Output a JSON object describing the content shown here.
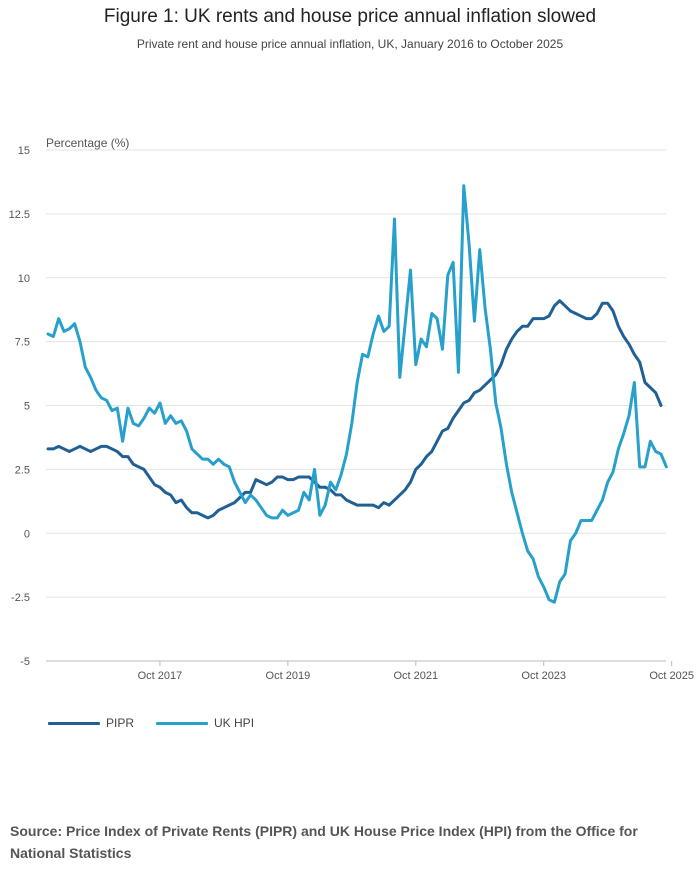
{
  "title": "Figure 1: UK rents and house price annual inflation slowed",
  "subtitle": "Private rent and house price annual inflation, UK, January 2016 to October 2025",
  "source": "Source: Price Index of Private Rents (PIPR) and UK House Price Index (HPI) from the Office for National Statistics",
  "chart_data": {
    "type": "line",
    "ylabel": "Percentage (%)",
    "ylim": [
      -5,
      15
    ],
    "yticks": [
      -5,
      -2.5,
      0,
      2.5,
      5,
      7.5,
      10,
      12.5,
      15
    ],
    "ytick_labels": [
      "-5",
      "-2.5",
      "0",
      "2.5",
      "5",
      "7.5",
      "10",
      "12.5",
      "15"
    ],
    "xticks": [
      "Oct 2017",
      "Oct 2019",
      "Oct 2021",
      "Oct 2023",
      "Oct 2025"
    ],
    "x_start": "Jan 2016",
    "x_end": "Oct 2025",
    "grid": "horizontal",
    "legend_position": "bottom-left",
    "series": [
      {
        "name": "PIPR",
        "color": "#206095",
        "values": [
          3.3,
          3.3,
          3.4,
          3.3,
          3.2,
          3.3,
          3.4,
          3.3,
          3.2,
          3.3,
          3.4,
          3.4,
          3.3,
          3.2,
          3.0,
          3.0,
          2.7,
          2.6,
          2.5,
          2.2,
          1.9,
          1.8,
          1.6,
          1.5,
          1.2,
          1.3,
          1.0,
          0.8,
          0.8,
          0.7,
          0.6,
          0.7,
          0.9,
          1.0,
          1.1,
          1.2,
          1.4,
          1.6,
          1.6,
          2.1,
          2.0,
          1.9,
          2.0,
          2.2,
          2.2,
          2.1,
          2.1,
          2.2,
          2.2,
          2.2,
          2.0,
          1.8,
          1.8,
          1.7,
          1.5,
          1.5,
          1.3,
          1.2,
          1.1,
          1.1,
          1.1,
          1.1,
          1.0,
          1.2,
          1.1,
          1.3,
          1.5,
          1.7,
          2.0,
          2.5,
          2.7,
          3.0,
          3.2,
          3.6,
          4.0,
          4.1,
          4.5,
          4.8,
          5.1,
          5.2,
          5.5,
          5.6,
          5.8,
          6.0,
          6.2,
          6.6,
          7.2,
          7.6,
          7.9,
          8.1,
          8.1,
          8.4,
          8.4,
          8.4,
          8.5,
          8.9,
          9.1,
          8.9,
          8.7,
          8.6,
          8.5,
          8.4,
          8.4,
          8.6,
          9.0,
          9.0,
          8.7,
          8.1,
          7.7,
          7.4,
          7.0,
          6.7,
          5.9,
          5.7,
          5.5,
          5.0
        ]
      },
      {
        "name": "UK HPI",
        "color": "#27a0cc",
        "values": [
          7.8,
          7.7,
          8.4,
          7.9,
          8.0,
          8.2,
          7.5,
          6.5,
          6.1,
          5.6,
          5.3,
          5.2,
          4.8,
          4.9,
          3.6,
          4.9,
          4.3,
          4.2,
          4.5,
          4.9,
          4.7,
          5.1,
          4.3,
          4.6,
          4.3,
          4.4,
          4.0,
          3.3,
          3.1,
          2.9,
          2.9,
          2.7,
          2.9,
          2.7,
          2.6,
          2.0,
          1.6,
          1.2,
          1.5,
          1.3,
          1.0,
          0.7,
          0.6,
          0.6,
          0.9,
          0.7,
          0.8,
          0.9,
          1.6,
          1.3,
          2.5,
          0.7,
          1.1,
          2.0,
          1.7,
          2.3,
          3.1,
          4.3,
          5.9,
          7.0,
          6.9,
          7.8,
          8.5,
          7.9,
          8.1,
          12.3,
          6.1,
          8.2,
          10.3,
          6.6,
          7.6,
          7.3,
          8.6,
          8.4,
          7.2,
          10.1,
          10.6,
          6.3,
          13.6,
          11.3,
          8.3,
          11.1,
          8.8,
          7.2,
          5.1,
          4.1,
          2.7,
          1.6,
          0.8,
          0.0,
          -0.7,
          -1.0,
          -1.7,
          -2.1,
          -2.6,
          -2.7,
          -1.9,
          -1.6,
          -0.3,
          0.0,
          0.5,
          0.5,
          0.5,
          0.9,
          1.3,
          2.0,
          2.4,
          3.3,
          3.9,
          4.6,
          5.9,
          2.6,
          2.6,
          3.6,
          3.2,
          3.1,
          2.6
        ]
      }
    ]
  }
}
